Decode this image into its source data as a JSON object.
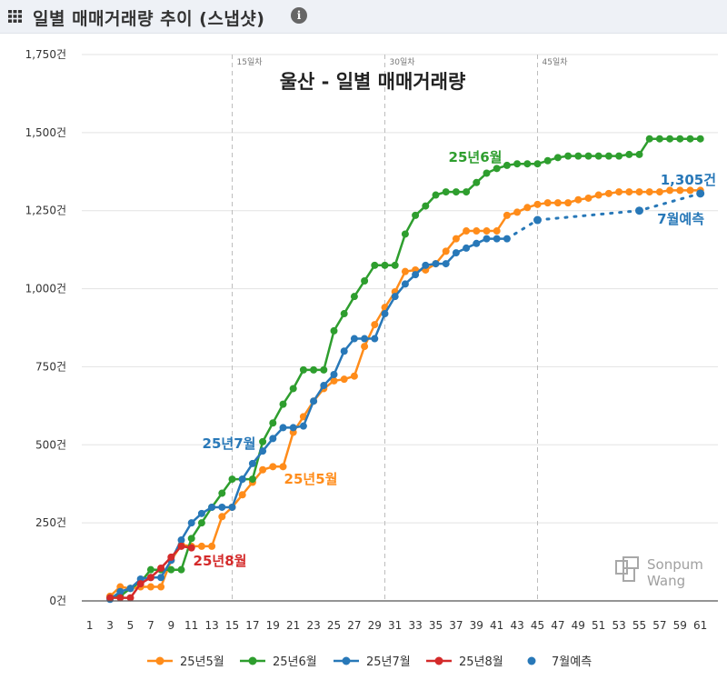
{
  "header": {
    "title": "일별 매매거래량 추이 (스냅샷)",
    "grid_icon": "grid-icon",
    "info_icon": "info-icon",
    "info_glyph": "i"
  },
  "watermark": {
    "line1": "Sonpum",
    "line2": "Wang",
    "icon": "sonpumwang-logo-icon"
  },
  "chart_data": {
    "type": "line",
    "title": "울산 - 일별 매매거래량",
    "x_ticks": [
      1,
      3,
      5,
      7,
      9,
      11,
      13,
      15,
      17,
      19,
      21,
      23,
      25,
      27,
      29,
      31,
      33,
      35,
      37,
      39,
      41,
      43,
      45,
      47,
      49,
      51,
      53,
      55,
      57,
      59,
      61
    ],
    "x_range": [
      0,
      62
    ],
    "y_range": [
      0,
      1750
    ],
    "y_ticks": [
      0,
      250,
      500,
      750,
      1000,
      1250,
      1500,
      1750
    ],
    "y_tick_labels": [
      "0건",
      "250건",
      "500건",
      "750건",
      "1,000건",
      "1,250건",
      "1,500건",
      "1,750건"
    ],
    "reference_lines": [
      {
        "x": 15,
        "label": "15일차"
      },
      {
        "x": 30,
        "label": "30일차"
      },
      {
        "x": 45,
        "label": "45일차"
      }
    ],
    "series": [
      {
        "name": "25년5월",
        "color": "#ff8c1a",
        "dashed": false,
        "x": [
          3,
          4,
          5,
          6,
          7,
          8,
          9,
          10,
          11,
          12,
          13,
          14,
          15,
          16,
          17,
          18,
          19,
          20,
          21,
          22,
          23,
          24,
          25,
          26,
          27,
          28,
          29,
          30,
          31,
          32,
          33,
          34,
          35,
          36,
          37,
          38,
          39,
          40,
          41,
          42,
          43,
          44,
          45,
          46,
          47,
          48,
          49,
          50,
          51,
          52,
          53,
          54,
          55,
          56,
          57,
          58,
          59,
          60,
          61
        ],
        "values": [
          15,
          45,
          40,
          45,
          45,
          45,
          130,
          180,
          175,
          175,
          175,
          270,
          300,
          340,
          380,
          420,
          430,
          430,
          540,
          590,
          640,
          680,
          705,
          710,
          720,
          815,
          885,
          940,
          990,
          1055,
          1060,
          1060,
          1080,
          1120,
          1160,
          1185,
          1185,
          1185,
          1185,
          1235,
          1245,
          1260,
          1270,
          1275,
          1275,
          1275,
          1285,
          1290,
          1300,
          1305,
          1310,
          1310,
          1310,
          1310,
          1310,
          1315,
          1315,
          1315,
          1315
        ]
      },
      {
        "name": "25년6월",
        "color": "#2e9e2e",
        "dashed": false,
        "x": [
          3,
          4,
          5,
          6,
          7,
          8,
          9,
          10,
          11,
          12,
          13,
          14,
          15,
          16,
          17,
          18,
          19,
          20,
          21,
          22,
          23,
          24,
          25,
          26,
          27,
          28,
          29,
          30,
          31,
          32,
          33,
          34,
          35,
          36,
          37,
          38,
          39,
          40,
          41,
          42,
          43,
          44,
          45,
          46,
          47,
          48,
          49,
          50,
          51,
          52,
          53,
          54,
          55,
          56,
          57,
          58,
          59,
          60,
          61
        ],
        "values": [
          10,
          15,
          40,
          60,
          100,
          100,
          100,
          100,
          200,
          250,
          300,
          345,
          390,
          390,
          390,
          510,
          570,
          630,
          680,
          740,
          740,
          740,
          865,
          920,
          975,
          1025,
          1075,
          1075,
          1075,
          1175,
          1235,
          1265,
          1300,
          1310,
          1310,
          1310,
          1340,
          1370,
          1385,
          1395,
          1400,
          1400,
          1400,
          1410,
          1420,
          1425,
          1425,
          1425,
          1425,
          1425,
          1425,
          1430,
          1430,
          1480,
          1480,
          1480,
          1480,
          1480,
          1480
        ]
      },
      {
        "name": "25년7월",
        "color": "#2878b8",
        "dashed": false,
        "x": [
          3,
          4,
          5,
          6,
          7,
          8,
          9,
          10,
          11,
          12,
          13,
          14,
          15,
          16,
          17,
          18,
          19,
          20,
          21,
          22,
          23,
          24,
          25,
          26,
          27,
          28,
          29,
          30,
          31,
          32,
          33,
          34,
          35,
          36,
          37,
          38,
          39,
          40,
          41,
          42
        ],
        "values": [
          5,
          30,
          40,
          70,
          75,
          75,
          130,
          195,
          250,
          280,
          300,
          300,
          300,
          390,
          440,
          480,
          520,
          555,
          555,
          560,
          640,
          690,
          725,
          800,
          840,
          840,
          840,
          920,
          975,
          1015,
          1045,
          1075,
          1080,
          1080,
          1115,
          1130,
          1145,
          1160,
          1160,
          1160
        ]
      },
      {
        "name": "25년8월",
        "color": "#d42a2a",
        "dashed": false,
        "x": [
          3,
          4,
          5,
          6,
          7,
          8,
          9,
          10,
          11
        ],
        "values": [
          10,
          10,
          10,
          55,
          75,
          105,
          140,
          175,
          170
        ]
      },
      {
        "name": "7월예측",
        "color": "#2878b8",
        "dashed": true,
        "x": [
          42,
          45,
          55,
          61
        ],
        "values": [
          1160,
          1220,
          1250,
          1305
        ],
        "markers_at": [
          45,
          55,
          61
        ]
      }
    ],
    "annotations": [
      {
        "text": "25년6월",
        "series": "25년6월"
      },
      {
        "text": "25년7월",
        "series": "25년7월"
      },
      {
        "text": "25년5월",
        "series": "25년5월"
      },
      {
        "text": "25년8월",
        "series": "25년8월"
      },
      {
        "text": "1,305건",
        "series": "7월예측"
      },
      {
        "text": "7월예측",
        "series": "7월예측"
      }
    ],
    "legend": [
      "25년5월",
      "25년6월",
      "25년7월",
      "25년8월",
      "7월예측"
    ],
    "legend_position": "bottom"
  }
}
